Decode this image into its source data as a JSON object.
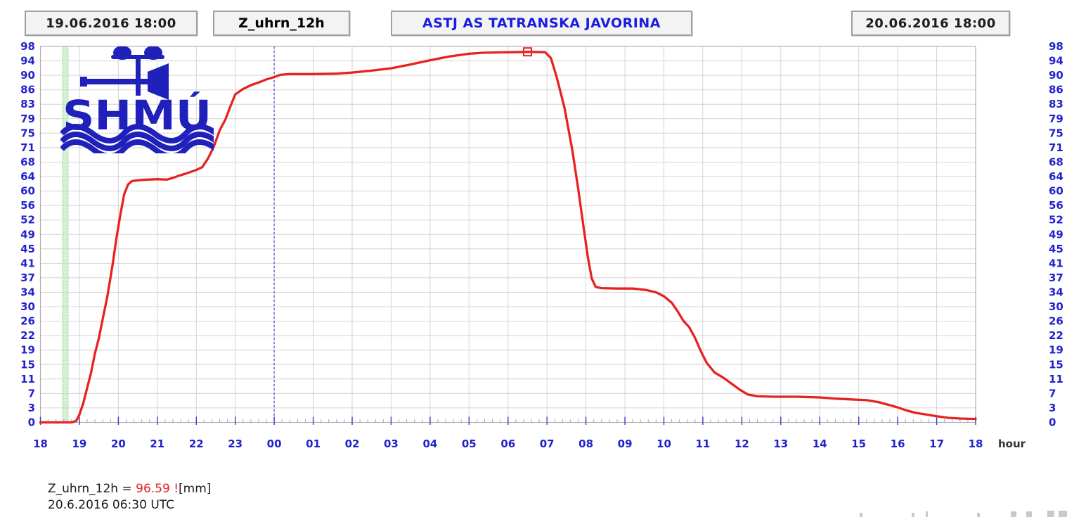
{
  "header": {
    "start_datetime": "19.06.2016 18:00",
    "parameter": "Z_uhrn_12h",
    "station": "ASTJ AS TATRANSKA JAVORINA",
    "end_datetime": "20.06.2016 18:00"
  },
  "logo": {
    "text": "SHMÚ"
  },
  "annotation": {
    "label": "Z_uhrn_12h = ",
    "value": "96.59 !",
    "unit": "[mm]",
    "timestamp": "20.6.2016 06:30 UTC"
  },
  "colors": {
    "curve": "#e62222",
    "axis_label_blue": "#2222cc",
    "hour_label": "#333333",
    "grid": "#d4d4d4",
    "border": "#b0b0b0",
    "minor_tick": "#a0a8e8",
    "major_tick": "#3c3cc8",
    "midnight_line": "#5050e6",
    "band_dot": "#9cd89c",
    "band_bg": "#eefaee",
    "logo_blue": "#2020bb"
  },
  "chart_data": {
    "type": "line",
    "title": "ASTJ AS TATRANSKA JAVORINA",
    "parameter": "Z_uhrn_12h",
    "x_unit": "hour",
    "x_start": "19.06.2016 18:00",
    "x_end": "20.06.2016 18:00",
    "xlim_hours": [
      0,
      24
    ],
    "ylim": [
      0,
      98
    ],
    "grid": true,
    "y_tick_labels_bottom_to_top": [
      "0",
      "3",
      "7",
      "11",
      "15",
      "19",
      "22",
      "26",
      "30",
      "34",
      "37",
      "41",
      "45",
      "49",
      "52",
      "56",
      "60",
      "64",
      "68",
      "71",
      "75",
      "79",
      "83",
      "86",
      "90",
      "94",
      "98"
    ],
    "x_tick_labels": [
      "18",
      "19",
      "20",
      "21",
      "22",
      "23",
      "00",
      "01",
      "02",
      "03",
      "04",
      "05",
      "06",
      "07",
      "08",
      "09",
      "10",
      "11",
      "12",
      "13",
      "14",
      "15",
      "16",
      "17",
      "18"
    ],
    "midnight_line_hour": 6,
    "highlight_band": {
      "from_hour": 0.55,
      "to_hour": 0.73
    },
    "marker": {
      "hour": 12.5,
      "value": 96.59
    },
    "series": [
      {
        "name": "Z_uhrn_12h",
        "unit": "mm",
        "points": [
          [
            0,
            0
          ],
          [
            0.8,
            0
          ],
          [
            0.92,
            0.4
          ],
          [
            1.0,
            2
          ],
          [
            1.1,
            5
          ],
          [
            1.2,
            9
          ],
          [
            1.3,
            13
          ],
          [
            1.4,
            18
          ],
          [
            1.5,
            22
          ],
          [
            1.6,
            27
          ],
          [
            1.72,
            33
          ],
          [
            1.85,
            41
          ],
          [
            1.95,
            48
          ],
          [
            2.05,
            54
          ],
          [
            2.15,
            59.5
          ],
          [
            2.25,
            62
          ],
          [
            2.35,
            62.9
          ],
          [
            2.6,
            63.2
          ],
          [
            3.0,
            63.4
          ],
          [
            3.25,
            63.3
          ],
          [
            3.42,
            63.8
          ],
          [
            3.58,
            64.4
          ],
          [
            3.75,
            64.9
          ],
          [
            4.0,
            65.8
          ],
          [
            4.15,
            66.5
          ],
          [
            4.3,
            68.8
          ],
          [
            4.45,
            71.9
          ],
          [
            4.6,
            76.1
          ],
          [
            4.75,
            79
          ],
          [
            4.88,
            82.5
          ],
          [
            5.0,
            85.5
          ],
          [
            5.2,
            86.9
          ],
          [
            5.4,
            87.9
          ],
          [
            5.6,
            88.6
          ],
          [
            5.8,
            89.4
          ],
          [
            6.0,
            90
          ],
          [
            6.15,
            90.6
          ],
          [
            6.4,
            90.8
          ],
          [
            7.0,
            90.8
          ],
          [
            7.6,
            90.9
          ],
          [
            8.0,
            91.2
          ],
          [
            8.5,
            91.7
          ],
          [
            9.0,
            92.3
          ],
          [
            9.5,
            93.3
          ],
          [
            10.0,
            94.4
          ],
          [
            10.5,
            95.4
          ],
          [
            11.0,
            96.1
          ],
          [
            11.35,
            96.35
          ],
          [
            11.75,
            96.45
          ],
          [
            12.15,
            96.5
          ],
          [
            12.5,
            96.59
          ],
          [
            12.95,
            96.5
          ],
          [
            13.1,
            95
          ],
          [
            13.25,
            90
          ],
          [
            13.45,
            82
          ],
          [
            13.65,
            71
          ],
          [
            13.8,
            61
          ],
          [
            13.95,
            50
          ],
          [
            14.05,
            43
          ],
          [
            14.15,
            37.5
          ],
          [
            14.25,
            35.3
          ],
          [
            14.4,
            35
          ],
          [
            14.8,
            34.9
          ],
          [
            15.2,
            34.9
          ],
          [
            15.55,
            34.5
          ],
          [
            15.8,
            33.9
          ],
          [
            16.0,
            32.9
          ],
          [
            16.2,
            31.2
          ],
          [
            16.35,
            29
          ],
          [
            16.5,
            26.5
          ],
          [
            16.65,
            24.8
          ],
          [
            16.8,
            22
          ],
          [
            16.95,
            18.5
          ],
          [
            17.1,
            15.5
          ],
          [
            17.3,
            13
          ],
          [
            17.55,
            11.5
          ],
          [
            17.75,
            10
          ],
          [
            17.95,
            8.5
          ],
          [
            18.15,
            7.3
          ],
          [
            18.4,
            6.8
          ],
          [
            18.8,
            6.7
          ],
          [
            19.4,
            6.7
          ],
          [
            20.0,
            6.5
          ],
          [
            20.4,
            6.2
          ],
          [
            20.8,
            6.0
          ],
          [
            21.2,
            5.8
          ],
          [
            21.5,
            5.3
          ],
          [
            21.8,
            4.5
          ],
          [
            22.0,
            3.9
          ],
          [
            22.2,
            3.2
          ],
          [
            22.45,
            2.5
          ],
          [
            22.7,
            2.1
          ],
          [
            23.0,
            1.6
          ],
          [
            23.3,
            1.2
          ],
          [
            23.6,
            1.0
          ],
          [
            24.0,
            0.9
          ]
        ]
      }
    ]
  }
}
